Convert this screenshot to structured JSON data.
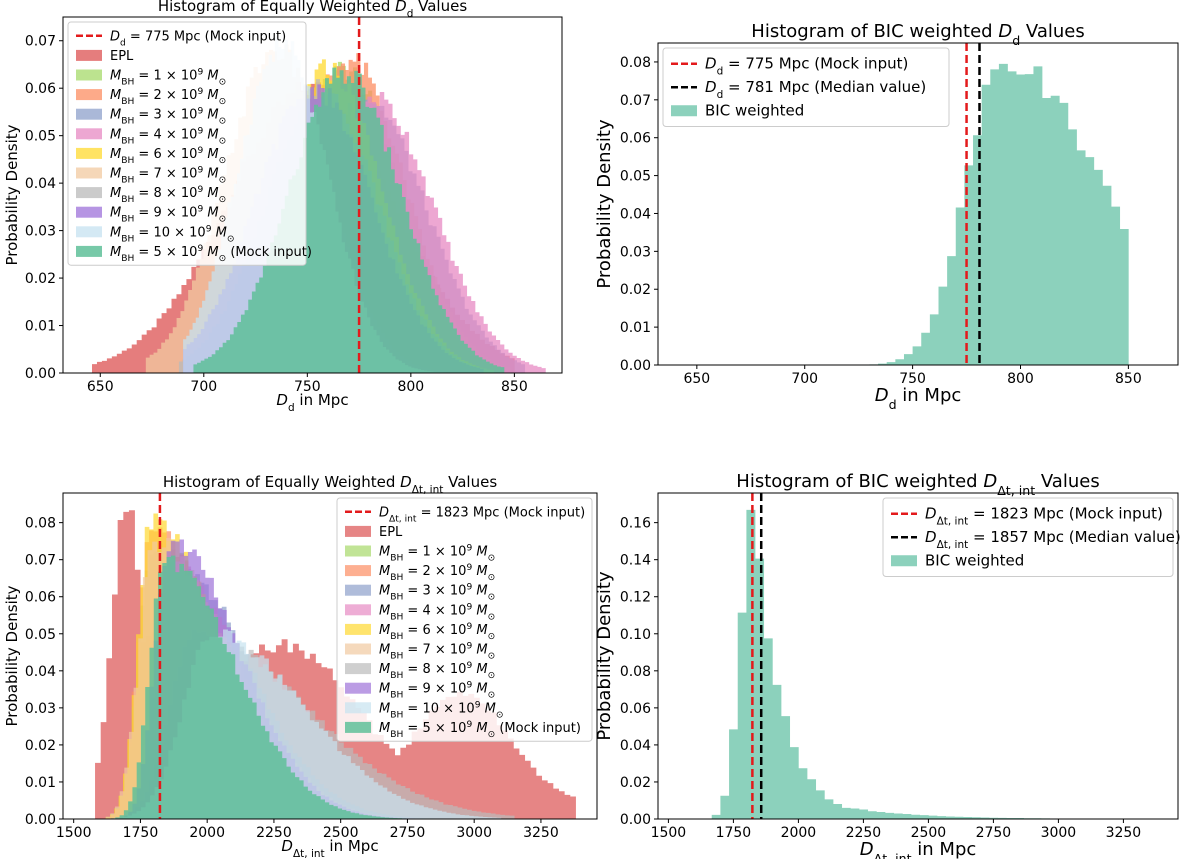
{
  "figure_title": "",
  "chart_data": [
    {
      "id": "p1",
      "type": "histogram",
      "title": "Histogram of Equally Weighted D_d Values",
      "title_parts": {
        "pre": "Histogram of Equally Weighted ",
        "var": "D",
        "sub": "d",
        "post": " Values"
      },
      "xlabel": "D_d in Mpc",
      "xlabel_parts": {
        "var": "D",
        "sub": "d",
        "post": " in Mpc"
      },
      "ylabel": "Probability Density",
      "xlim": [
        632,
        873
      ],
      "ylim": [
        0,
        0.075
      ],
      "xticks": [
        650,
        700,
        750,
        800,
        850
      ],
      "yticks": [
        0.0,
        0.01,
        0.02,
        0.03,
        0.04,
        0.05,
        0.06,
        0.07
      ],
      "legend_position": "top-left",
      "vlines": [
        {
          "x": 775,
          "color": "#e31a1c",
          "label": "D_d = 775 Mpc (Mock input)",
          "parts": {
            "var": "D",
            "sub": "d",
            "post": " = 775 Mpc (Mock input)"
          }
        }
      ],
      "series": [
        {
          "name": "EPL",
          "parts": {
            "pre": "EPL"
          },
          "color": "#e06666",
          "opacity": 0.85,
          "mu": 752,
          "sigma": 40,
          "peak": 0.06,
          "range": [
            646,
            850
          ]
        },
        {
          "name": "M_BH = 1 × 10^9 M_⊙",
          "parts": {
            "num": "1"
          },
          "color": "#a6d96a",
          "opacity": 0.75,
          "mu": 768,
          "sigma": 26,
          "peak": 0.064,
          "range": [
            690,
            845
          ]
        },
        {
          "name": "M_BH = 2 × 10^9 M_⊙",
          "parts": {
            "num": "2"
          },
          "color": "#fc8d62",
          "opacity": 0.75,
          "mu": 770,
          "sigma": 27,
          "peak": 0.066,
          "range": [
            690,
            848
          ]
        },
        {
          "name": "M_BH = 3 × 10^9 M_⊙",
          "parts": {
            "num": "3"
          },
          "color": "#8da0cb",
          "opacity": 0.75,
          "mu": 778,
          "sigma": 29,
          "peak": 0.058,
          "range": [
            690,
            855
          ]
        },
        {
          "name": "M_BH = 4 × 10^9 M_⊙",
          "parts": {
            "num": "4"
          },
          "color": "#e78ac3",
          "opacity": 0.75,
          "mu": 782,
          "sigma": 29,
          "peak": 0.058,
          "range": [
            695,
            865
          ]
        },
        {
          "name": "M_BH = 6 × 10^9 M_⊙",
          "parts": {
            "num": "6"
          },
          "color": "#ffd92f",
          "opacity": 0.75,
          "mu": 760,
          "sigma": 26,
          "peak": 0.064,
          "range": [
            690,
            840
          ]
        },
        {
          "name": "M_BH = 7 × 10^9 M_⊙",
          "parts": {
            "num": "7"
          },
          "color": "#f1c9a0",
          "opacity": 0.75,
          "mu": 735,
          "sigma": 25,
          "peak": 0.068,
          "range": [
            672,
            830
          ]
        },
        {
          "name": "M_BH = 8 × 10^9 M_⊙",
          "parts": {
            "num": "8"
          },
          "color": "#bababa",
          "opacity": 0.75,
          "mu": 757,
          "sigma": 27,
          "peak": 0.06,
          "range": [
            688,
            840
          ]
        },
        {
          "name": "M_BH = 9 × 10^9 M_⊙",
          "parts": {
            "num": "9"
          },
          "color": "#9e72d9",
          "opacity": 0.75,
          "mu": 753,
          "sigma": 28,
          "peak": 0.06,
          "range": [
            690,
            835
          ]
        },
        {
          "name": "M_BH = 10 × 10^9 M_⊙",
          "parts": {
            "num": "10"
          },
          "color": "#c6e2f0",
          "opacity": 0.75,
          "mu": 738,
          "sigma": 22,
          "peak": 0.069,
          "range": [
            690,
            820
          ]
        },
        {
          "name": "M_BH = 5 × 10^9 M_⊙ (Mock input)",
          "parts": {
            "num": "5",
            "post": " (Mock input)"
          },
          "color": "#5fbf99",
          "opacity": 0.85,
          "mu": 768,
          "sigma": 27,
          "peak": 0.063,
          "range": [
            695,
            845
          ]
        }
      ]
    },
    {
      "id": "p2",
      "type": "histogram",
      "title": "Histogram of BIC weighted D_d Values",
      "title_parts": {
        "pre": "Histogram of BIC weighted ",
        "var": "D",
        "sub": "d",
        "post": " Values"
      },
      "xlabel": "D_d in Mpc",
      "xlabel_parts": {
        "var": "D",
        "sub": "d",
        "post": " in Mpc"
      },
      "ylabel": "Probability Density",
      "xlim": [
        632,
        873
      ],
      "ylim": [
        0,
        0.085
      ],
      "xticks": [
        650,
        700,
        750,
        800,
        850
      ],
      "yticks": [
        0.0,
        0.01,
        0.02,
        0.03,
        0.04,
        0.05,
        0.06,
        0.07,
        0.08
      ],
      "legend_position": "top-left",
      "vlines": [
        {
          "x": 775,
          "color": "#e31a1c",
          "label": "D_d = 775 Mpc (Mock input)",
          "parts": {
            "var": "D",
            "sub": "d",
            "post": " = 775 Mpc (Mock input)"
          }
        },
        {
          "x": 781,
          "color": "#000000",
          "label": "D_d = 781 Mpc (Median value)",
          "parts": {
            "var": "D",
            "sub": "d",
            "post": " = 781 Mpc (Median value)"
          }
        }
      ],
      "series": [
        {
          "name": "BIC weighted",
          "parts": {
            "pre": "BIC weighted"
          },
          "color": "#66c2a5",
          "opacity": 0.75,
          "mu": 792,
          "sigma": 17,
          "tailSigma": 45,
          "peak": 0.081,
          "range": [
            650,
            850
          ]
        }
      ]
    },
    {
      "id": "p3",
      "type": "histogram",
      "title": "Histogram of Equally Weighted D_Δt,int Values",
      "title_parts": {
        "pre": "Histogram of Equally Weighted ",
        "var": "D",
        "sub": "Δt, int",
        "post": " Values"
      },
      "xlabel": "D_Δt,int in Mpc",
      "xlabel_parts": {
        "var": "D",
        "sub": "Δt, int",
        "post": " in Mpc"
      },
      "ylabel": "Probability Density",
      "xlim": [
        1460,
        3460
      ],
      "ylim": [
        0,
        0.088
      ],
      "xticks": [
        1500,
        1750,
        2000,
        2250,
        2500,
        2750,
        3000,
        3250
      ],
      "yticks": [
        0.0,
        0.01,
        0.02,
        0.03,
        0.04,
        0.05,
        0.06,
        0.07,
        0.08
      ],
      "legend_position": "top-right",
      "vlines": [
        {
          "x": 1823,
          "color": "#e31a1c",
          "label": "D_Δt,int = 1823 Mpc (Mock input)",
          "parts": {
            "var": "D",
            "sub": "Δt, int",
            "post": " = 1823 Mpc (Mock input)"
          }
        }
      ],
      "series": [
        {
          "name": "EPL",
          "parts": {
            "pre": "EPL"
          },
          "color": "#e06666",
          "opacity": 0.8,
          "mode": "epl",
          "range": [
            1580,
            3380
          ]
        },
        {
          "name": "M_BH = 1 × 10^9 M_⊙",
          "parts": {
            "num": "1"
          },
          "color": "#a6d96a",
          "opacity": 0.7,
          "mu": 1800,
          "sigma": 55,
          "tailSigma": 260,
          "peak": 0.075,
          "range": [
            1620,
            3000
          ]
        },
        {
          "name": "M_BH = 2 × 10^9 M_⊙",
          "parts": {
            "num": "2"
          },
          "color": "#fc8d62",
          "opacity": 0.7,
          "mu": 1790,
          "sigma": 50,
          "tailSigma": 250,
          "peak": 0.078,
          "range": [
            1620,
            3000
          ]
        },
        {
          "name": "M_BH = 3 × 10^9 M_⊙",
          "parts": {
            "num": "3"
          },
          "color": "#8da0cb",
          "opacity": 0.7,
          "mu": 1870,
          "sigma": 60,
          "tailSigma": 280,
          "peak": 0.07,
          "range": [
            1640,
            3050
          ]
        },
        {
          "name": "M_BH = 4 × 10^9 M_⊙",
          "parts": {
            "num": "4"
          },
          "color": "#e78ac3",
          "opacity": 0.7,
          "mu": 1860,
          "sigma": 60,
          "tailSigma": 270,
          "peak": 0.068,
          "range": [
            1640,
            3050
          ]
        },
        {
          "name": "M_BH = 6 × 10^9 M_⊙",
          "parts": {
            "num": "6"
          },
          "color": "#ffd92f",
          "opacity": 0.7,
          "mu": 1790,
          "sigma": 50,
          "tailSigma": 250,
          "peak": 0.08,
          "range": [
            1620,
            3000
          ]
        },
        {
          "name": "M_BH = 7 × 10^9 M_⊙",
          "parts": {
            "num": "7"
          },
          "color": "#f1c9a0",
          "opacity": 0.7,
          "mu": 1800,
          "sigma": 55,
          "tailSigma": 280,
          "peak": 0.075,
          "range": [
            1620,
            3100
          ]
        },
        {
          "name": "M_BH = 8 × 10^9 M_⊙",
          "parts": {
            "num": "8"
          },
          "color": "#bababa",
          "opacity": 0.7,
          "mu": 1950,
          "sigma": 90,
          "tailSigma": 420,
          "peak": 0.05,
          "range": [
            1640,
            3150
          ]
        },
        {
          "name": "M_BH = 9 × 10^9 M_⊙",
          "parts": {
            "num": "9"
          },
          "color": "#9e72d9",
          "opacity": 0.7,
          "mu": 1860,
          "sigma": 55,
          "tailSigma": 260,
          "peak": 0.075,
          "range": [
            1640,
            3000
          ]
        },
        {
          "name": "M_BH = 10 × 10^9 M_⊙",
          "parts": {
            "num": "10"
          },
          "color": "#c6e2f0",
          "opacity": 0.7,
          "mu": 2020,
          "sigma": 110,
          "tailSigma": 340,
          "peak": 0.05,
          "range": [
            1650,
            3100
          ]
        },
        {
          "name": "M_BH = 5 × 10^9 M_⊙ (Mock input)",
          "parts": {
            "num": "5",
            "post": " (Mock input)"
          },
          "color": "#5fbf99",
          "opacity": 0.85,
          "mu": 1840,
          "sigma": 55,
          "tailSigma": 260,
          "peak": 0.07,
          "range": [
            1640,
            3000
          ]
        }
      ]
    },
    {
      "id": "p4",
      "type": "histogram",
      "title": "Histogram of BIC weighted D_Δt,int Values",
      "title_parts": {
        "pre": "Histogram of BIC weighted ",
        "var": "D",
        "sub": "Δt, int",
        "post": " Values"
      },
      "xlabel": "D_Δt,int in Mpc",
      "xlabel_parts": {
        "var": "D",
        "sub": "Δt, int",
        "post": " in Mpc"
      },
      "ylabel": "Probability Density",
      "xlim": [
        1460,
        3460
      ],
      "ylim": [
        0,
        0.176
      ],
      "xticks": [
        1500,
        1750,
        2000,
        2250,
        2500,
        2750,
        3000,
        3250
      ],
      "yticks": [
        0.0,
        0.02,
        0.04,
        0.06,
        0.08,
        0.1,
        0.12,
        0.14,
        0.16
      ],
      "legend_position": "top-right",
      "vlines": [
        {
          "x": 1823,
          "color": "#e31a1c",
          "label": "D_Δt,int = 1823 Mpc (Mock input)",
          "parts": {
            "var": "D",
            "sub": "Δt, int",
            "post": " = 1823 Mpc (Mock input)"
          }
        },
        {
          "x": 1857,
          "color": "#000000",
          "label": "D_Δt,int = 1857 Mpc (Median value)",
          "parts": {
            "var": "D",
            "sub": "Δt, int",
            "post": " = 1857 Mpc (Median value)"
          }
        }
      ],
      "series": [
        {
          "name": "BIC weighted",
          "parts": {
            "pre": "BIC weighted"
          },
          "color": "#66c2a5",
          "opacity": 0.75,
          "mode": "bic",
          "range": [
            1600,
            3200
          ]
        }
      ]
    }
  ]
}
